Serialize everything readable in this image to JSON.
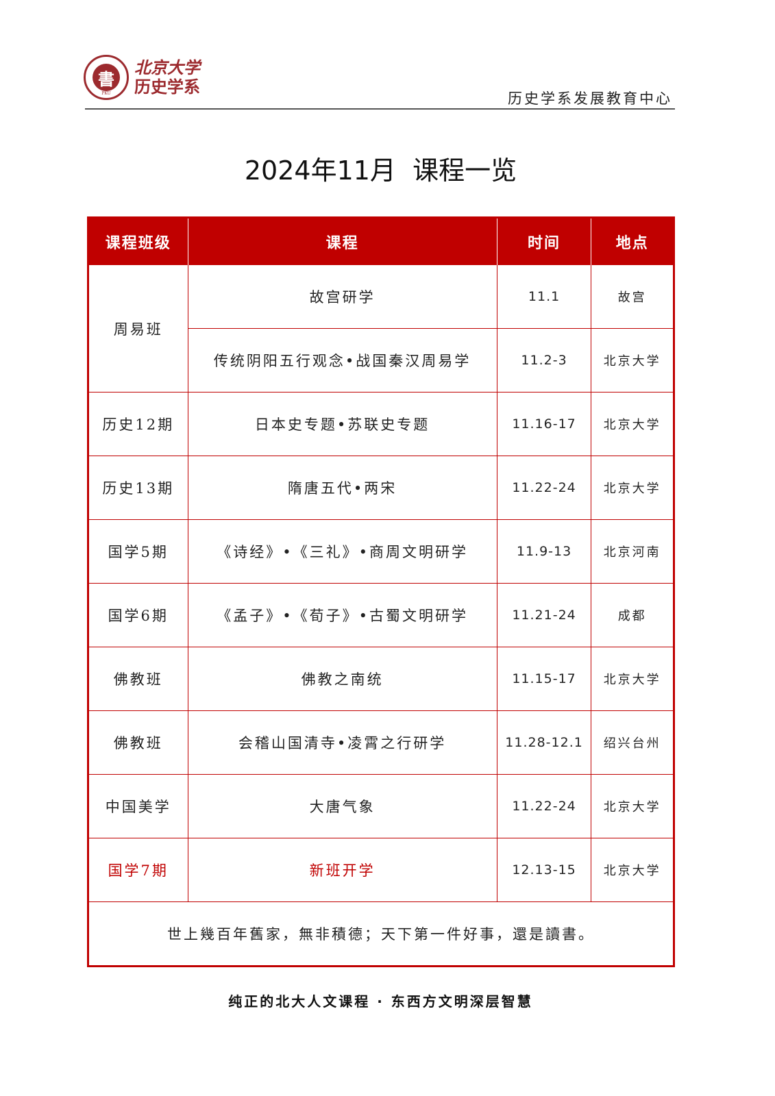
{
  "header": {
    "logo_line1": "北京大学",
    "logo_line2": "历史学系",
    "logo_ring": "DEPARTMENT OF HISTORY · PKU",
    "center_name": "历史学系发展教育中心"
  },
  "title": "2024年11月  课程一览",
  "table": {
    "columns": [
      "课程班级",
      "课程",
      "时间",
      "地点"
    ],
    "group": {
      "class": "周易班",
      "rows": [
        {
          "course": "故宫研学",
          "time": "11.1",
          "location": "故宫"
        },
        {
          "course": "传统阴阳五行观念•战国秦汉周易学",
          "time": "11.2-3",
          "location": "北京大学"
        }
      ]
    },
    "rows": [
      {
        "class": "历史12期",
        "course": "日本史专题•苏联史专题",
        "time": "11.16-17",
        "location": "北京大学"
      },
      {
        "class": "历史13期",
        "course": "隋唐五代•两宋",
        "time": "11.22-24",
        "location": "北京大学"
      },
      {
        "class": "国学5期",
        "course": "《诗经》•《三礼》•商周文明研学",
        "time": "11.9-13",
        "location": "北京河南"
      },
      {
        "class": "国学6期",
        "course": "《孟子》•《荀子》•古蜀文明研学",
        "time": "11.21-24",
        "location": "成都"
      },
      {
        "class": "佛教班",
        "course": "佛教之南统",
        "time": "11.15-17",
        "location": "北京大学"
      },
      {
        "class": "佛教班",
        "course": "会稽山国清寺•凌霄之行研学",
        "time": "11.28-12.1",
        "location": "绍兴台州"
      },
      {
        "class": "中国美学",
        "course": "大唐气象",
        "time": "11.22-24",
        "location": "北京大学"
      },
      {
        "class": "国学7期",
        "course": "新班开学",
        "time": "12.13-15",
        "location": "北京大学"
      }
    ],
    "quote": "世上幾百年舊家，無非積德；天下第一件好事，還是讀書。"
  },
  "footer": "纯正的北大人文课程 · 东西方文明深层智慧",
  "colors": {
    "accent": "#c00000",
    "logo": "#9c2a2e"
  }
}
